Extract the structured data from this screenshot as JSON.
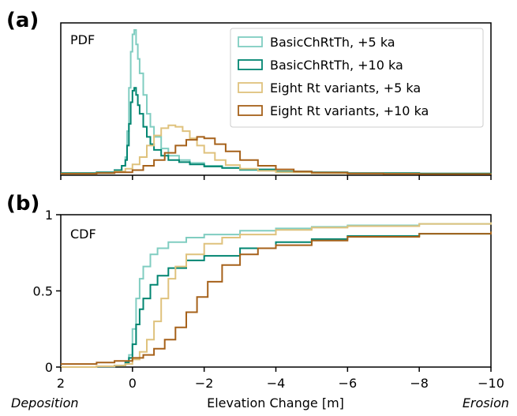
{
  "chart_data": [
    {
      "panel": "(a)",
      "inner_label": "PDF",
      "type": "histogram-step",
      "xlim": [
        2,
        -10
      ],
      "y_ticks_shown": false,
      "legend_placement": "top-right",
      "series": [
        {
          "name": "BasicChRtTh, +5 ka",
          "color": "#80cdc1",
          "x": [
            2.0,
            1.0,
            0.5,
            0.3,
            0.2,
            0.15,
            0.1,
            0.05,
            0.0,
            -0.05,
            -0.1,
            -0.15,
            -0.2,
            -0.3,
            -0.4,
            -0.5,
            -0.6,
            -0.8,
            -1.0,
            -1.3,
            -1.6,
            -2.0,
            -2.5,
            -3.0,
            -4.0,
            -5.0,
            -6.0,
            -8.0,
            -10.0
          ],
          "y": [
            0.005,
            0.01,
            0.03,
            0.06,
            0.12,
            0.3,
            0.6,
            0.85,
            0.97,
            1.0,
            0.9,
            0.8,
            0.7,
            0.55,
            0.42,
            0.33,
            0.26,
            0.18,
            0.13,
            0.1,
            0.08,
            0.06,
            0.045,
            0.03,
            0.015,
            0.01,
            0.007,
            0.004,
            0.002
          ]
        },
        {
          "name": "BasicChRtTh, +10 ka",
          "color": "#018571",
          "x": [
            2.0,
            1.0,
            0.5,
            0.3,
            0.2,
            0.15,
            0.1,
            0.05,
            0.0,
            -0.05,
            -0.1,
            -0.15,
            -0.2,
            -0.3,
            -0.4,
            -0.5,
            -0.6,
            -0.8,
            -1.0,
            -1.3,
            -1.6,
            -2.0,
            -2.5,
            -3.0,
            -4.0,
            -5.0,
            -6.0,
            -8.0,
            -10.0
          ],
          "y": [
            0.01,
            0.015,
            0.03,
            0.06,
            0.1,
            0.2,
            0.35,
            0.5,
            0.58,
            0.6,
            0.55,
            0.48,
            0.42,
            0.33,
            0.26,
            0.21,
            0.17,
            0.13,
            0.1,
            0.085,
            0.07,
            0.055,
            0.045,
            0.035,
            0.02,
            0.015,
            0.01,
            0.007,
            0.005
          ]
        },
        {
          "name": "Eight Rt variants, +5 ka",
          "color": "#dfc27d",
          "x": [
            2.0,
            1.0,
            0.5,
            0.2,
            0.0,
            -0.2,
            -0.4,
            -0.6,
            -0.8,
            -1.0,
            -1.2,
            -1.4,
            -1.6,
            -1.8,
            -2.0,
            -2.3,
            -2.6,
            -3.0,
            -3.5,
            -4.0,
            -5.0,
            -6.0,
            -8.0,
            -10.0
          ],
          "y": [
            0.005,
            0.01,
            0.02,
            0.04,
            0.07,
            0.12,
            0.2,
            0.27,
            0.32,
            0.34,
            0.33,
            0.3,
            0.25,
            0.2,
            0.15,
            0.1,
            0.065,
            0.04,
            0.025,
            0.015,
            0.008,
            0.005,
            0.003,
            0.002
          ]
        },
        {
          "name": "Eight Rt variants, +10 ka",
          "color": "#a6611a",
          "x": [
            2.0,
            1.0,
            0.5,
            0.0,
            -0.3,
            -0.6,
            -0.9,
            -1.2,
            -1.5,
            -1.8,
            -2.0,
            -2.3,
            -2.6,
            -3.0,
            -3.5,
            -4.0,
            -4.5,
            -5.0,
            -6.0,
            -7.0,
            -8.0,
            -10.0
          ],
          "y": [
            0.005,
            0.01,
            0.015,
            0.03,
            0.06,
            0.1,
            0.15,
            0.2,
            0.24,
            0.26,
            0.25,
            0.21,
            0.16,
            0.1,
            0.06,
            0.035,
            0.02,
            0.013,
            0.007,
            0.004,
            0.003,
            0.002
          ]
        }
      ]
    },
    {
      "panel": "(b)",
      "inner_label": "CDF",
      "type": "line-step",
      "xlim": [
        2,
        -10
      ],
      "ylim": [
        0,
        1
      ],
      "y_ticks": [
        "0",
        "0.5",
        "1"
      ],
      "series": [
        {
          "name": "BasicChRtTh, +5 ka",
          "color": "#80cdc1",
          "x": [
            2.0,
            1.0,
            0.5,
            0.2,
            0.1,
            0.0,
            -0.1,
            -0.2,
            -0.3,
            -0.5,
            -0.7,
            -1.0,
            -1.5,
            -2.0,
            -3.0,
            -4.0,
            -5.0,
            -6.0,
            -8.0,
            -10.0
          ],
          "y": [
            0.0,
            0.003,
            0.01,
            0.03,
            0.08,
            0.25,
            0.45,
            0.58,
            0.66,
            0.74,
            0.78,
            0.82,
            0.85,
            0.87,
            0.895,
            0.91,
            0.92,
            0.93,
            0.94,
            0.95
          ]
        },
        {
          "name": "BasicChRtTh, +10 ka",
          "color": "#018571",
          "x": [
            2.0,
            1.0,
            0.5,
            0.2,
            0.1,
            0.0,
            -0.1,
            -0.2,
            -0.3,
            -0.5,
            -0.7,
            -1.0,
            -1.5,
            -2.0,
            -3.0,
            -4.0,
            -5.0,
            -6.0,
            -8.0,
            -10.0
          ],
          "y": [
            0.0,
            0.005,
            0.01,
            0.03,
            0.06,
            0.15,
            0.28,
            0.38,
            0.45,
            0.54,
            0.6,
            0.65,
            0.7,
            0.73,
            0.78,
            0.82,
            0.84,
            0.86,
            0.875,
            0.89
          ]
        },
        {
          "name": "Eight Rt variants, +5 ka",
          "color": "#dfc27d",
          "x": [
            2.0,
            1.0,
            0.5,
            0.2,
            0.0,
            -0.2,
            -0.4,
            -0.6,
            -0.8,
            -1.0,
            -1.2,
            -1.5,
            -2.0,
            -2.5,
            -3.0,
            -4.0,
            -5.0,
            -6.0,
            -8.0,
            -10.0
          ],
          "y": [
            0.0,
            0.005,
            0.01,
            0.02,
            0.05,
            0.1,
            0.18,
            0.3,
            0.45,
            0.58,
            0.66,
            0.74,
            0.81,
            0.85,
            0.87,
            0.9,
            0.915,
            0.925,
            0.94,
            0.95
          ]
        },
        {
          "name": "Eight Rt variants, +10 ka",
          "color": "#a6611a",
          "x": [
            2.0,
            1.0,
            0.5,
            0.0,
            -0.3,
            -0.6,
            -0.9,
            -1.2,
            -1.5,
            -1.8,
            -2.1,
            -2.5,
            -3.0,
            -3.5,
            -4.0,
            -5.0,
            -6.0,
            -8.0,
            -10.0
          ],
          "y": [
            0.02,
            0.03,
            0.04,
            0.06,
            0.08,
            0.12,
            0.18,
            0.26,
            0.36,
            0.46,
            0.56,
            0.67,
            0.74,
            0.78,
            0.8,
            0.83,
            0.855,
            0.875,
            0.89
          ]
        }
      ]
    }
  ],
  "x_ticks": [
    "2",
    "0",
    "−2",
    "−4",
    "−6",
    "−8",
    "−10"
  ],
  "x_tick_values": [
    2,
    0,
    -2,
    -4,
    -6,
    -8,
    -10
  ],
  "xlabel": "Elevation Change [m]",
  "xlabel_left": "Deposition",
  "xlabel_right": "Erosion"
}
